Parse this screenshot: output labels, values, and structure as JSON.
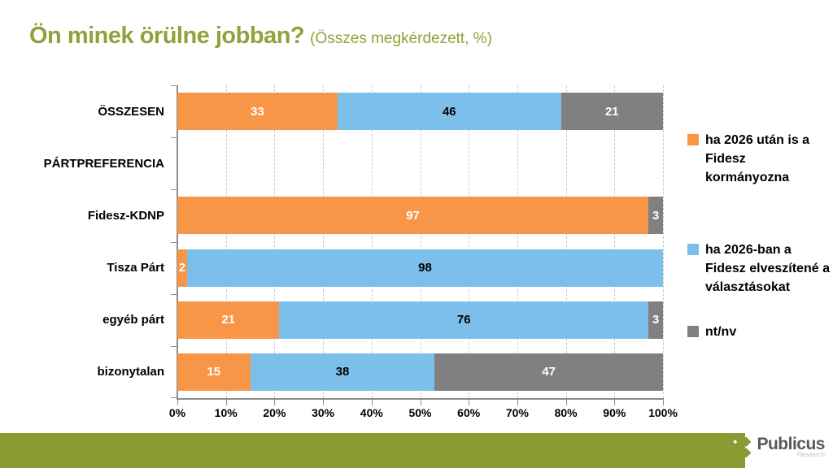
{
  "title": {
    "main": "Ön minek örülne jobban?",
    "subtitle": "(Összes megkérdezett, %)"
  },
  "colors": {
    "title_olive": "#8FA23C",
    "footer_band_olive": "#8C9A33",
    "series_orange": "#F79646",
    "series_blue": "#7CBFEA",
    "series_gray": "#808080",
    "gridline": "#C9C9C9",
    "axis": "#8C8C8C"
  },
  "chart_data": {
    "type": "bar",
    "orientation": "horizontal",
    "stacked": true,
    "title": "Ön minek örülne jobban? (Összes megkérdezett, %)",
    "categories": [
      "ÖSSZESEN",
      "PÁRTPREFERENCIA",
      "Fidesz-KDNP",
      "Tisza Párt",
      "egyéb párt",
      "bizonytalan"
    ],
    "series": [
      {
        "name": "ha 2026 után is a Fidesz kormányozna",
        "color": "#F79646",
        "label_color": "#FFFFFF",
        "values": [
          33,
          null,
          97,
          2,
          21,
          15
        ]
      },
      {
        "name": "ha 2026-ban a Fidesz elveszítené a választásokat",
        "color": "#7CBFEA",
        "label_color": "#000000",
        "values": [
          46,
          null,
          0,
          98,
          76,
          38
        ]
      },
      {
        "name": "nt/nv",
        "color": "#808080",
        "label_color": "#FFFFFF",
        "values": [
          21,
          null,
          3,
          0,
          3,
          47
        ]
      }
    ],
    "xlim": [
      0,
      100
    ],
    "x_ticks": [
      "0%",
      "10%",
      "20%",
      "30%",
      "40%",
      "50%",
      "60%",
      "70%",
      "80%",
      "90%",
      "100%"
    ],
    "grid": "dashed-vertical",
    "legend_position": "right"
  },
  "footer": {
    "brand": "Publicus",
    "brand_sub": "Research"
  }
}
